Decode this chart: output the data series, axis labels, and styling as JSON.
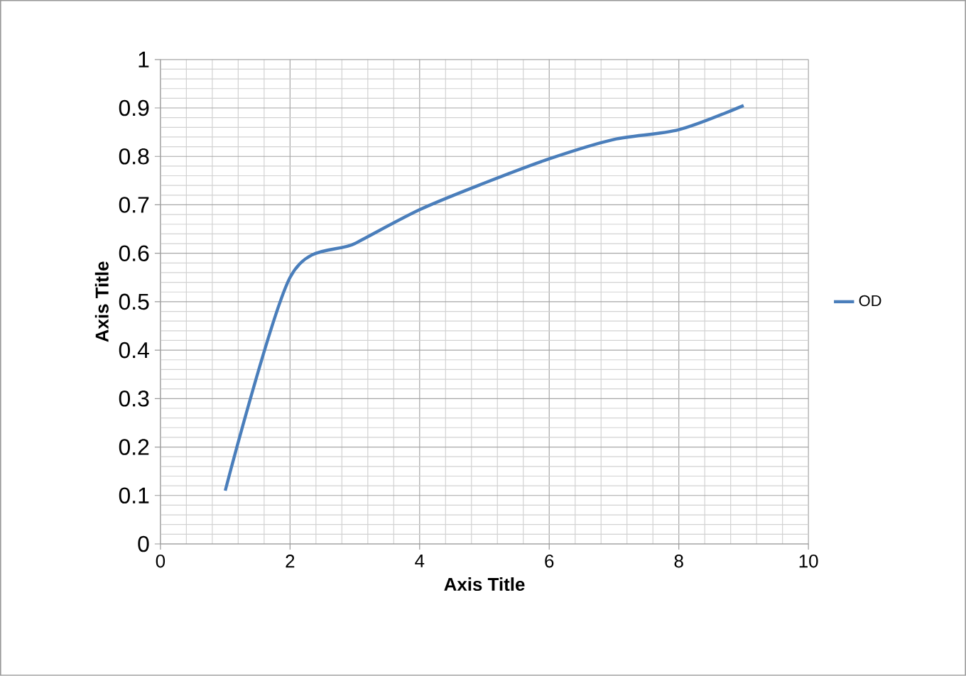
{
  "chart_data": {
    "type": "line",
    "xlabel": "Axis Title",
    "ylabel": "Axis Title",
    "x": [
      1,
      2,
      3,
      4,
      5,
      6,
      7,
      8,
      9
    ],
    "series": [
      {
        "name": "OD",
        "color": "#4a7ebb",
        "values": [
          0.11,
          0.55,
          0.62,
          0.69,
          0.745,
          0.795,
          0.835,
          0.855,
          0.905
        ]
      }
    ],
    "xlim": [
      0,
      10
    ],
    "xticks": [
      0,
      2,
      4,
      6,
      8,
      10
    ],
    "ylim": [
      0,
      1
    ],
    "yticks": [
      0,
      0.1,
      0.2,
      0.3,
      0.4,
      0.5,
      0.6,
      0.7,
      0.8,
      0.9,
      1
    ],
    "grid": true,
    "legend": "right",
    "marker": "none",
    "line_style": "solid"
  }
}
